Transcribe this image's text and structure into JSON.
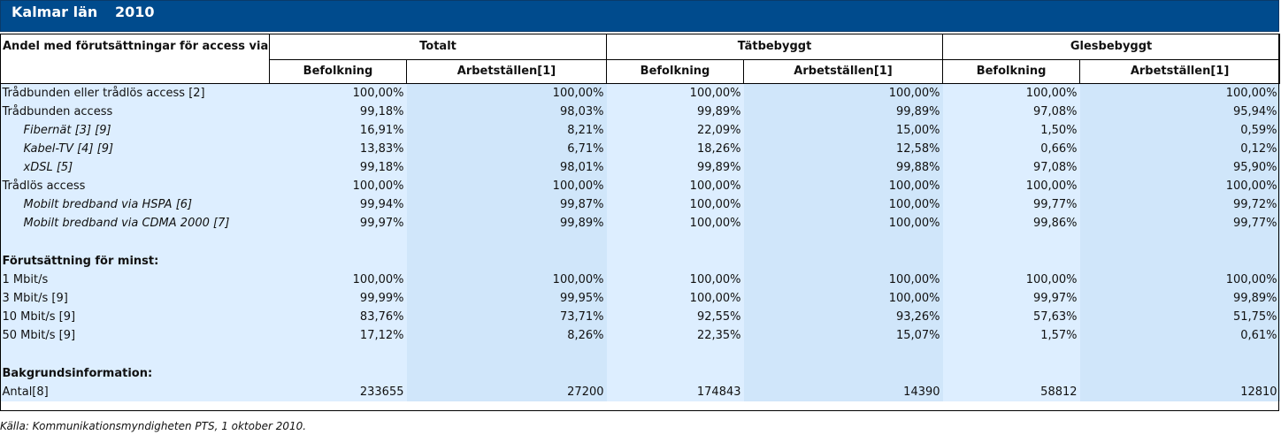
{
  "header": {
    "region": "Kalmar län",
    "year": "2010"
  },
  "table": {
    "corner": "Andel med förutsättningar för access via:",
    "groups": [
      "Totalt",
      "Tätbebyggt",
      "Glesbebyggt"
    ],
    "subheaders": [
      "Befolkning",
      "Arbetställen[1]",
      "Befolkning",
      "Arbetställen[1]",
      "Befolkning",
      "Arbetställen[1]"
    ],
    "rows": [
      {
        "label": "Trådbunden eller trådlös access [2]",
        "values": [
          "100,00%",
          "100,00%",
          "100,00%",
          "100,00%",
          "100,00%",
          "100,00%"
        ]
      },
      {
        "label": "Trådbunden access",
        "values": [
          "99,18%",
          "98,03%",
          "99,89%",
          "99,89%",
          "97,08%",
          "95,94%"
        ]
      },
      {
        "label": "Fibernät [3] [9]",
        "values": [
          "16,91%",
          "8,21%",
          "22,09%",
          "15,00%",
          "1,50%",
          "0,59%"
        ]
      },
      {
        "label": "Kabel-TV [4] [9]",
        "values": [
          "13,83%",
          "6,71%",
          "18,26%",
          "12,58%",
          "0,66%",
          "0,12%"
        ]
      },
      {
        "label": "xDSL [5]",
        "values": [
          "99,18%",
          "98,01%",
          "99,89%",
          "99,88%",
          "97,08%",
          "95,90%"
        ]
      },
      {
        "label": "Trådlös access",
        "values": [
          "100,00%",
          "100,00%",
          "100,00%",
          "100,00%",
          "100,00%",
          "100,00%"
        ]
      },
      {
        "label": "Mobilt bredband via HSPA [6]",
        "values": [
          "99,94%",
          "99,87%",
          "100,00%",
          "100,00%",
          "99,77%",
          "99,72%"
        ]
      },
      {
        "label": "Mobilt bredband via CDMA 2000 [7]",
        "values": [
          "99,97%",
          "99,89%",
          "100,00%",
          "100,00%",
          "99,86%",
          "99,77%"
        ]
      }
    ],
    "section2_title": "Förutsättning för minst:",
    "speed_rows": [
      {
        "label": "1 Mbit/s",
        "values": [
          "100,00%",
          "100,00%",
          "100,00%",
          "100,00%",
          "100,00%",
          "100,00%"
        ]
      },
      {
        "label": "3 Mbit/s [9]",
        "values": [
          "99,99%",
          "99,95%",
          "100,00%",
          "100,00%",
          "99,97%",
          "99,89%"
        ]
      },
      {
        "label": "10 Mbit/s [9]",
        "values": [
          "83,76%",
          "73,71%",
          "92,55%",
          "93,26%",
          "57,63%",
          "51,75%"
        ]
      },
      {
        "label": "50 Mbit/s [9]",
        "values": [
          "17,12%",
          "8,26%",
          "22,35%",
          "15,07%",
          "1,57%",
          "0,61%"
        ]
      }
    ],
    "section3_title": "Bakgrundsinformation:",
    "count_row": {
      "label": "Antal[8]",
      "values": [
        "233655",
        "27200",
        "174843",
        "14390",
        "58812",
        "12810"
      ]
    }
  },
  "footer": {
    "source": "Källa: Kommunikationsmyndigheten PTS, 1 oktober 2010."
  }
}
